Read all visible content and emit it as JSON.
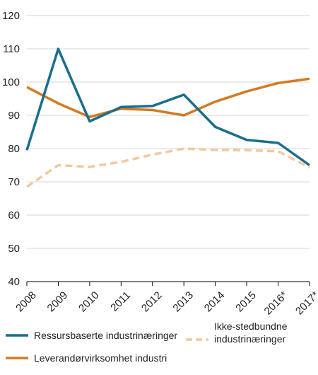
{
  "chart_data": {
    "type": "line",
    "title": "",
    "xlabel": "",
    "ylabel": "",
    "categories": [
      "2008",
      "2009",
      "2010",
      "2011",
      "2012",
      "2013",
      "2014",
      "2015",
      "2016*",
      "2017*"
    ],
    "ylim": [
      40,
      120
    ],
    "yticks": [
      "40",
      "50",
      "60",
      "70",
      "80",
      "90",
      "100",
      "110",
      "120"
    ],
    "grid": "horizontal",
    "legend_position": "bottom",
    "series": [
      {
        "name": "Ressursbaserte industrinæringer",
        "color": "#1a6e8c",
        "style": "solid",
        "values": [
          79.5,
          110,
          88.2,
          92.5,
          92.8,
          96.2,
          86.5,
          82.6,
          81.7,
          75
        ]
      },
      {
        "name": "Leverandørvirksomhet industri",
        "color": "#d47a20",
        "style": "solid",
        "values": [
          98.5,
          93.6,
          89.5,
          92,
          91.6,
          90,
          94.1,
          97.2,
          99.7,
          101
        ]
      },
      {
        "name": "Ikke-stedbundne industrinæringer",
        "color": "#f2c99e",
        "style": "dashed",
        "values": [
          68.5,
          75,
          74.5,
          76,
          78.2,
          80,
          79.6,
          79.5,
          79.2,
          74.3
        ]
      }
    ],
    "legend": [
      {
        "lines": [
          "Ressursbaserte industrinæringer"
        ]
      },
      {
        "lines": [
          "Leverandørvirksomhet industri"
        ]
      },
      {
        "lines": [
          "Ikke-stedbundne",
          "industrinæringer"
        ]
      }
    ]
  }
}
